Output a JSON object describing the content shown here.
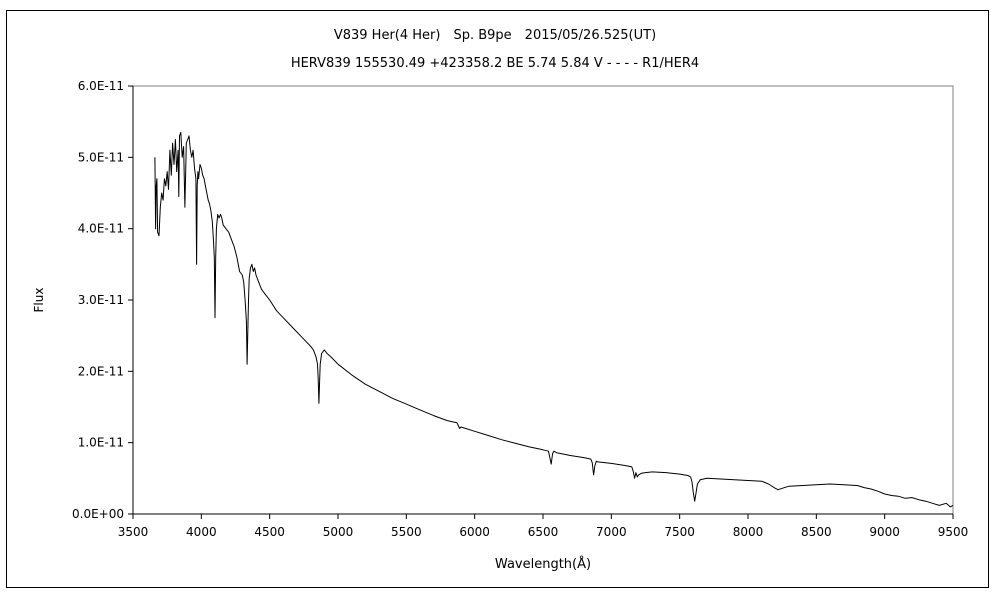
{
  "chart_data": {
    "type": "line",
    "title": "V839 Her(4 Her)　Sp. B9pe　2015/05/26.525(UT)",
    "subtitle": "HERV839 155530.49 +423358.2 BE 5.74 5.84 V - - - - R1/HER4",
    "xlabel": "Wavelength(Å)",
    "ylabel": "Flux",
    "xlim": [
      3500,
      9500
    ],
    "ylim": [
      0,
      6e-11
    ],
    "x_ticks": [
      3500,
      4000,
      4500,
      5000,
      5500,
      6000,
      6500,
      7000,
      7500,
      8000,
      8500,
      9000,
      9500
    ],
    "x_tick_labels": [
      "3500",
      "4000",
      "4500",
      "5000",
      "5500",
      "6000",
      "6500",
      "7000",
      "7500",
      "8000",
      "8500",
      "9000",
      "9500"
    ],
    "y_ticks": [
      0,
      1e-11,
      2e-11,
      3e-11,
      4e-11,
      5e-11,
      6e-11
    ],
    "y_tick_labels": [
      "0.0E+00",
      "1.0E-11",
      "2.0E-11",
      "3.0E-11",
      "4.0E-11",
      "5.0E-11",
      "6.0E-11"
    ],
    "grid": false,
    "legend": "none",
    "line_color": "#000000",
    "series": [
      {
        "x": [
          3660,
          3665,
          3670,
          3675,
          3680,
          3690,
          3700,
          3710,
          3720,
          3730,
          3740,
          3750,
          3760,
          3770,
          3780,
          3790,
          3800,
          3810,
          3820,
          3830,
          3835,
          3840,
          3850,
          3860,
          3870,
          3880,
          3890,
          3900,
          3910,
          3920,
          3930,
          3940,
          3950,
          3960,
          3965,
          3970,
          3975,
          3980,
          3990,
          4000,
          4010,
          4020,
          4030,
          4040,
          4050,
          4060,
          4070,
          4080,
          4090,
          4095,
          4100,
          4105,
          4110,
          4120,
          4130,
          4140,
          4150,
          4160,
          4180,
          4200,
          4220,
          4240,
          4260,
          4280,
          4300,
          4310,
          4320,
          4330,
          4335,
          4340,
          4345,
          4350,
          4360,
          4370,
          4380,
          4390,
          4400,
          4420,
          4440,
          4460,
          4480,
          4500,
          4550,
          4600,
          4650,
          4700,
          4750,
          4800,
          4820,
          4840,
          4850,
          4855,
          4860,
          4865,
          4870,
          4880,
          4900,
          4920,
          4950,
          5000,
          5100,
          5200,
          5300,
          5400,
          5500,
          5600,
          5700,
          5800,
          5870,
          5890,
          5900,
          6000,
          6100,
          6200,
          6300,
          6400,
          6500,
          6540,
          6560,
          6570,
          6580,
          6600,
          6700,
          6800,
          6850,
          6860,
          6870,
          6880,
          6890,
          6900,
          6950,
          7000,
          7100,
          7150,
          7160,
          7170,
          7180,
          7190,
          7200,
          7220,
          7250,
          7300,
          7400,
          7500,
          7560,
          7580,
          7590,
          7600,
          7610,
          7620,
          7630,
          7650,
          7700,
          7800,
          7900,
          8000,
          8100,
          8150,
          8200,
          8220,
          8250,
          8300,
          8400,
          8500,
          8600,
          8700,
          8800,
          8850,
          8900,
          8950,
          9000,
          9050,
          9100,
          9150,
          9200,
          9250,
          9300,
          9350,
          9400,
          9450,
          9480,
          9500
        ],
        "y": [
          5e-11,
          4e-11,
          4.6e-11,
          4.7e-11,
          3.95e-11,
          3.9e-11,
          4.3e-11,
          4.5e-11,
          4.4e-11,
          4.7e-11,
          4.6e-11,
          4.8e-11,
          4.55e-11,
          5.1e-11,
          4.75e-11,
          5.2e-11,
          4.9e-11,
          5.25e-11,
          4.8e-11,
          5.1e-11,
          4.45e-11,
          5.3e-11,
          5.35e-11,
          5e-11,
          5.15e-11,
          4.3e-11,
          5.2e-11,
          5.25e-11,
          5.3e-11,
          5.1e-11,
          5e-11,
          5.1e-11,
          4.85e-11,
          4.7e-11,
          3.5e-11,
          4.6e-11,
          4.8e-11,
          4.7e-11,
          4.9e-11,
          4.85e-11,
          4.75e-11,
          4.7e-11,
          4.6e-11,
          4.5e-11,
          4.4e-11,
          4.35e-11,
          4.25e-11,
          4.1e-11,
          3.8e-11,
          3.6e-11,
          2.75e-11,
          3.6e-11,
          4e-11,
          4.2e-11,
          4.15e-11,
          4.2e-11,
          4.15e-11,
          4.05e-11,
          4e-11,
          3.95e-11,
          3.85e-11,
          3.75e-11,
          3.6e-11,
          3.4e-11,
          3.35e-11,
          3.25e-11,
          3e-11,
          2.7e-11,
          2.1e-11,
          2.55e-11,
          3e-11,
          3.3e-11,
          3.45e-11,
          3.5e-11,
          3.4e-11,
          3.45e-11,
          3.35e-11,
          3.25e-11,
          3.15e-11,
          3.1e-11,
          3.05e-11,
          3e-11,
          2.85e-11,
          2.75e-11,
          2.65e-11,
          2.55e-11,
          2.45e-11,
          2.35e-11,
          2.3e-11,
          2.2e-11,
          2.1e-11,
          1.9e-11,
          1.55e-11,
          1.85e-11,
          2.1e-11,
          2.25e-11,
          2.3e-11,
          2.25e-11,
          2.2e-11,
          2.1e-11,
          1.95e-11,
          1.82e-11,
          1.72e-11,
          1.62e-11,
          1.54e-11,
          1.46e-11,
          1.38e-11,
          1.31e-11,
          1.28e-11,
          1.2e-11,
          1.22e-11,
          1.16e-11,
          1.1e-11,
          1.04e-11,
          9.9e-12,
          9.4e-12,
          9e-12,
          8.8e-12,
          7e-12,
          8.5e-12,
          8.8e-12,
          8.6e-12,
          8.2e-12,
          7.9e-12,
          7.7e-12,
          7.2e-12,
          5.5e-12,
          6.8e-12,
          7.4e-12,
          7.3e-12,
          7.2e-12,
          7.1e-12,
          6.8e-12,
          6.6e-12,
          6e-12,
          5e-12,
          5.8e-12,
          5.2e-12,
          5.5e-12,
          5.7e-12,
          5.8e-12,
          5.9e-12,
          5.8e-12,
          5.6e-12,
          5.4e-12,
          5.2e-12,
          4.5e-12,
          3e-12,
          1.8e-12,
          3e-12,
          4.2e-12,
          4.8e-12,
          5e-12,
          4.9e-12,
          4.8e-12,
          4.7e-12,
          4.6e-12,
          4.2e-12,
          3.6e-12,
          3.4e-12,
          3.6e-12,
          3.9e-12,
          4e-12,
          4.1e-12,
          4.2e-12,
          4.1e-12,
          4e-12,
          3.7e-12,
          3.5e-12,
          3.2e-12,
          2.8e-12,
          2.6e-12,
          2.5e-12,
          2.2e-12,
          2.3e-12,
          2e-12,
          1.8e-12,
          1.5e-12,
          1.2e-12,
          1.5e-12,
          1e-12,
          1.2e-12
        ]
      }
    ]
  }
}
